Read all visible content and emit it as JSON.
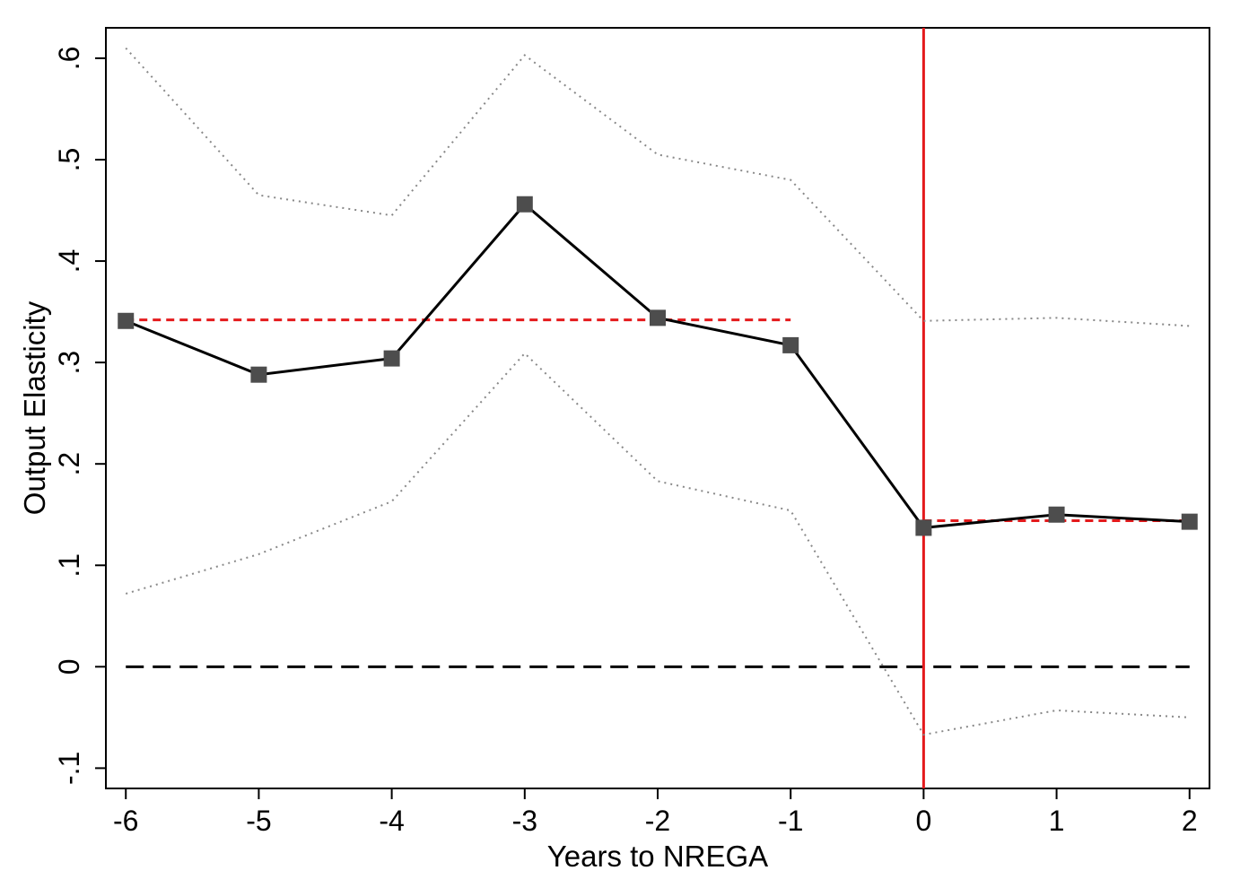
{
  "chart_data": {
    "type": "line",
    "xlabel": "Years to NREGA",
    "ylabel": "Output Elasticity",
    "x": [
      -6,
      -5,
      -4,
      -3,
      -2,
      -1,
      0,
      1,
      2
    ],
    "xlim": [
      -6.15,
      2.15
    ],
    "ylim": [
      -0.12,
      0.63
    ],
    "x_ticks": [
      {
        "value": -6,
        "label": "-6"
      },
      {
        "value": -5,
        "label": "-5"
      },
      {
        "value": -4,
        "label": "-4"
      },
      {
        "value": -3,
        "label": "-3"
      },
      {
        "value": -2,
        "label": "-2"
      },
      {
        "value": -1,
        "label": "-1"
      },
      {
        "value": 0,
        "label": "0"
      },
      {
        "value": 1,
        "label": "1"
      },
      {
        "value": 2,
        "label": "2"
      }
    ],
    "y_ticks": [
      {
        "value": -0.1,
        "label": "-.1"
      },
      {
        "value": 0,
        "label": "0"
      },
      {
        "value": 0.1,
        "label": ".1"
      },
      {
        "value": 0.2,
        "label": ".2"
      },
      {
        "value": 0.3,
        "label": ".3"
      },
      {
        "value": 0.4,
        "label": ".4"
      },
      {
        "value": 0.5,
        "label": ".5"
      },
      {
        "value": 0.6,
        "label": ".6"
      }
    ],
    "series": [
      {
        "role": "estimate",
        "values": [
          0.341,
          0.288,
          0.304,
          0.456,
          0.344,
          0.317,
          0.137,
          0.15,
          0.143
        ],
        "color": "#000000",
        "marker_color": "#4d4d4d"
      },
      {
        "role": "ci_upper",
        "values": [
          0.61,
          0.465,
          0.445,
          0.603,
          0.505,
          0.48,
          0.341,
          0.344,
          0.336
        ],
        "color": "#888888"
      },
      {
        "role": "ci_lower",
        "values": [
          0.072,
          0.111,
          0.163,
          0.309,
          0.183,
          0.154,
          -0.067,
          -0.043,
          -0.05
        ],
        "color": "#888888"
      }
    ],
    "reference_lines": [
      {
        "kind": "horizontal",
        "y": 0,
        "x_from": -6,
        "x_to": 2,
        "style": "dashed",
        "color": "#000000"
      },
      {
        "kind": "horizontal",
        "y": 0.342,
        "x_from": -6,
        "x_to": -1,
        "style": "dashed",
        "color": "#e41a1c"
      },
      {
        "kind": "horizontal",
        "y": 0.144,
        "x_from": 0,
        "x_to": 2,
        "style": "dashed",
        "color": "#e41a1c"
      },
      {
        "kind": "vertical",
        "x": 0,
        "style": "solid",
        "color": "#e41a1c"
      }
    ],
    "grid": false,
    "legend": "none"
  }
}
